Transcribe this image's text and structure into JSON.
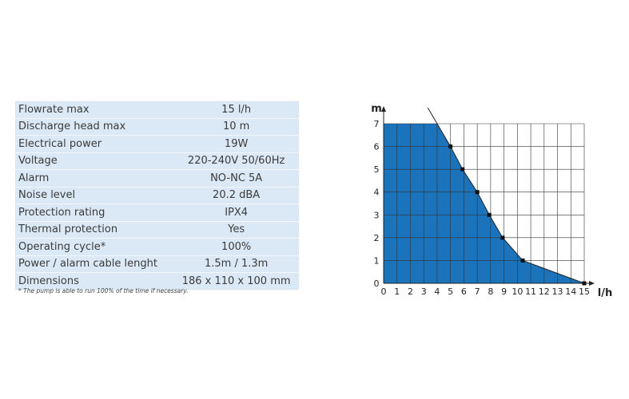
{
  "specs": [
    {
      "label": "Flowrate max",
      "value": "15 l/h"
    },
    {
      "label": "Discharge head max",
      "value": "10 m"
    },
    {
      "label": "Electrical power",
      "value": "19W"
    },
    {
      "label": "Voltage",
      "value": "220-240V  50/60Hz"
    },
    {
      "label": "Alarm",
      "value": "NO-NC 5A"
    },
    {
      "label": "Noise level",
      "value": "20.2 dBA"
    },
    {
      "label": "Protection rating",
      "value": "IPX4"
    },
    {
      "label": "Thermal protection",
      "value": "Yes"
    },
    {
      "label": "Operating cycle*",
      "value": "100%"
    },
    {
      "label": "Power / alarm cable lenght",
      "value": "1.5m / 1.3m"
    },
    {
      "label": "Dimensions",
      "value": "186 x 110 x 100 mm"
    }
  ],
  "footnote": "* The pump is able to run 100% of the time if necessary.",
  "chart_data": {
    "type": "area",
    "xlabel": "l/h",
    "ylabel": "m",
    "xlim": [
      0,
      15
    ],
    "ylim": [
      0,
      7
    ],
    "xticks": [
      0,
      1,
      2,
      3,
      4,
      5,
      6,
      7,
      8,
      9,
      10,
      11,
      12,
      13,
      14,
      15
    ],
    "yticks": [
      0,
      1,
      2,
      3,
      4,
      5,
      6,
      7
    ],
    "grid": true,
    "series": [
      {
        "x": [
          0,
          4,
          5,
          5.9,
          7,
          7.9,
          8.9,
          10.4,
          15
        ],
        "y": [
          7,
          7,
          6,
          5,
          4,
          3,
          2,
          1,
          0
        ],
        "markers_x": [
          5,
          5.9,
          7,
          7.9,
          8.9,
          10.4,
          15
        ],
        "markers_y": [
          6,
          5,
          4,
          3,
          2,
          1,
          0
        ]
      }
    ],
    "colors": {
      "fill": "#1a73bb",
      "line": "#222222",
      "grid": "#333333"
    }
  }
}
